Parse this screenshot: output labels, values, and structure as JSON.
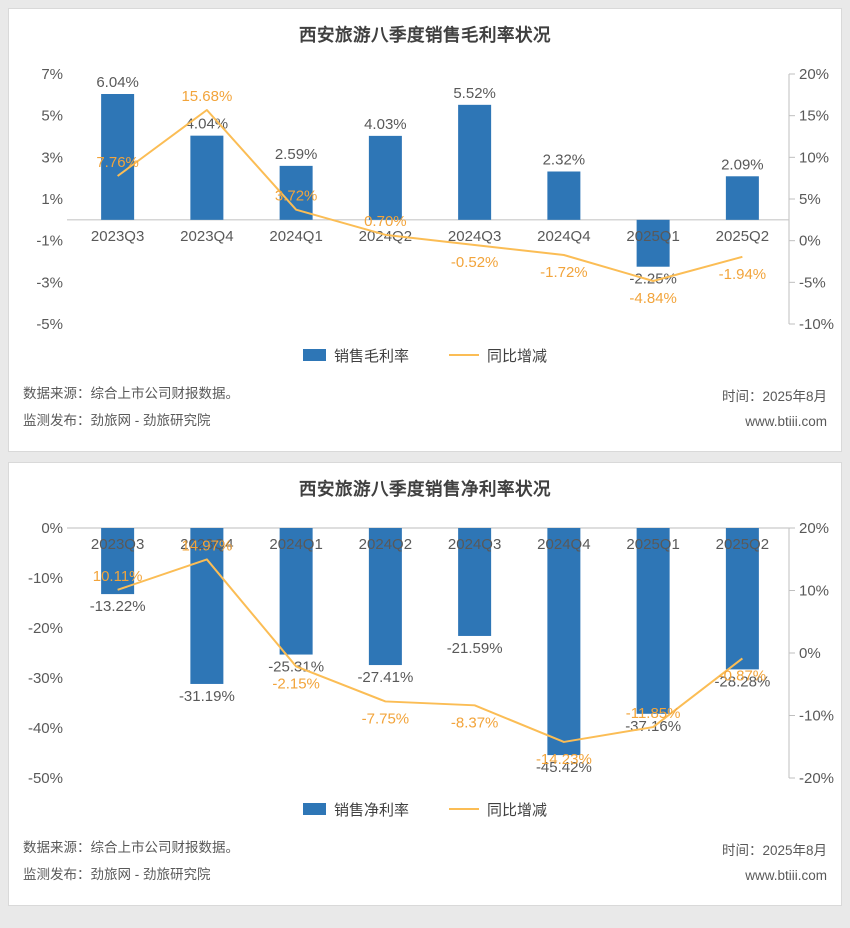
{
  "colors": {
    "bar_blue": "#2E76B6",
    "line_orange": "#FBBD55",
    "line_label_orange": "#F2A43B",
    "text_dark": "#404040",
    "text_gray": "#595959",
    "axis_line": "#BFBFBF",
    "zero_line": "#C9C9C9",
    "panel_border": "#D9D9D9",
    "panel_bg": "#FFFFFF",
    "page_bg": "#E9E9E9"
  },
  "charts": [
    {
      "title": "西安旅游八季度销售毛利率状况",
      "chart_data": {
        "type": "bar+line combo",
        "categories": [
          "2023Q3",
          "2023Q4",
          "2024Q1",
          "2024Q2",
          "2024Q3",
          "2024Q4",
          "2025Q1",
          "2025Q2"
        ],
        "series": [
          {
            "name": "销售毛利率",
            "type": "bar",
            "axis": "left",
            "values": [
              6.04,
              4.04,
              2.59,
              4.03,
              5.52,
              2.32,
              -2.25,
              2.09
            ],
            "labels": [
              "6.04%",
              "4.04%",
              "2.59%",
              "4.03%",
              "5.52%",
              "2.32%",
              "-2.25%",
              "2.09%"
            ]
          },
          {
            "name": "同比增减",
            "type": "line",
            "axis": "right",
            "values": [
              7.76,
              15.68,
              3.72,
              0.7,
              -0.52,
              -1.72,
              -4.84,
              -1.94
            ],
            "labels": [
              "7.76%",
              "15.68%",
              "3.72%",
              "0.70%",
              "-0.52%",
              "-1.72%",
              "-4.84%",
              "-1.94%"
            ],
            "label_side": [
              "above",
              "above",
              "above",
              "above",
              "below",
              "below",
              "below",
              "below"
            ]
          }
        ],
        "left_axis": {
          "ticks": [
            "7%",
            "5%",
            "3%",
            "1%",
            "-1%",
            "-3%",
            "-5%"
          ],
          "max": 7,
          "min": -5
        },
        "right_axis": {
          "ticks": [
            "20%",
            "15%",
            "10%",
            "5%",
            "0%",
            "-5%",
            "-10%"
          ],
          "max": 20,
          "min": -10
        },
        "grid": "off",
        "legend_position": "bottom"
      },
      "legend": [
        {
          "label": "销售毛利率",
          "swatch": "bar"
        },
        {
          "label": "同比增减",
          "swatch": "line"
        }
      ],
      "footer": {
        "source_line1": "数据来源：综合上市公司财报数据。",
        "source_line2": "监测发布：劲旅网 - 劲旅研究院",
        "time": "时间：2025年8月",
        "website": "www.btiii.com"
      }
    },
    {
      "title": "西安旅游八季度销售净利率状况",
      "chart_data": {
        "type": "bar+line combo",
        "categories": [
          "2023Q3",
          "2023Q4",
          "2024Q1",
          "2024Q2",
          "2024Q3",
          "2024Q4",
          "2025Q1",
          "2025Q2"
        ],
        "series": [
          {
            "name": "销售净利率",
            "type": "bar",
            "axis": "left",
            "values": [
              -13.22,
              -31.19,
              -25.31,
              -27.41,
              -21.59,
              -45.42,
              -37.16,
              -28.28
            ],
            "labels": [
              "-13.22%",
              "-31.19%",
              "-25.31%",
              "-27.41%",
              "-21.59%",
              "-45.42%",
              "-37.16%",
              "-28.28%"
            ]
          },
          {
            "name": "同比增减",
            "type": "line",
            "axis": "right",
            "values": [
              10.11,
              14.97,
              -2.15,
              -7.75,
              -8.37,
              -14.23,
              -11.85,
              -0.87
            ],
            "labels": [
              "10.11%",
              "14.97%",
              "-2.15%",
              "-7.75%",
              "-8.37%",
              "-14.23%",
              "-11.85%",
              "-0.87%"
            ],
            "label_side": [
              "above",
              "above",
              "below",
              "below",
              "below",
              "below",
              "above",
              "below"
            ]
          }
        ],
        "left_axis": {
          "ticks": [
            "0%",
            "-10%",
            "-20%",
            "-30%",
            "-40%",
            "-50%"
          ],
          "max": 0,
          "min": -50
        },
        "right_axis": {
          "ticks": [
            "20%",
            "10%",
            "0%",
            "-10%",
            "-20%"
          ],
          "max": 20,
          "min": -20
        },
        "grid": "off",
        "legend_position": "bottom"
      },
      "legend": [
        {
          "label": "销售净利率",
          "swatch": "bar"
        },
        {
          "label": "同比增减",
          "swatch": "line"
        }
      ],
      "footer": {
        "source_line1": "数据来源：综合上市公司财报数据。",
        "source_line2": "监测发布：劲旅网 - 劲旅研究院",
        "time": "时间：2025年8月",
        "website": "www.btiii.com"
      }
    }
  ]
}
